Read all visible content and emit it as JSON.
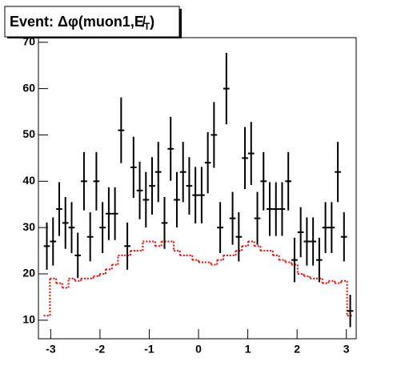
{
  "chart_data": {
    "type": "histogram",
    "title_parts": [
      "Event: Δφ(muon1,E̸",
      "T",
      ")"
    ],
    "bins": [
      -3.142,
      -3.016,
      -2.89,
      -2.765,
      -2.639,
      -2.513,
      -2.388,
      -2.262,
      -2.136,
      -2.011,
      -1.885,
      -1.759,
      -1.634,
      -1.508,
      -1.382,
      -1.257,
      -1.131,
      -1.005,
      -0.88,
      -0.754,
      -0.628,
      -0.503,
      -0.377,
      -0.251,
      -0.126,
      0,
      0.126,
      0.251,
      0.377,
      0.503,
      0.628,
      0.754,
      0.88,
      1.005,
      1.131,
      1.257,
      1.382,
      1.508,
      1.634,
      1.759,
      1.885,
      2.011,
      2.136,
      2.262,
      2.388,
      2.513,
      2.639,
      2.765,
      2.89,
      3.016,
      3.142
    ],
    "data": {
      "color": "#000000",
      "values": [
        26,
        27,
        34,
        31,
        30,
        24,
        40,
        28,
        40,
        30,
        33,
        33,
        51,
        26,
        43,
        38,
        36,
        39,
        42,
        31,
        47,
        36,
        42,
        39,
        37,
        37,
        44,
        50,
        30,
        60,
        32,
        28,
        45,
        46,
        32,
        40,
        34,
        34,
        34,
        40,
        23,
        29,
        27,
        27,
        23,
        30,
        30,
        42,
        28,
        12
      ],
      "errors": [
        5.1,
        5.2,
        5.8,
        5.6,
        5.5,
        4.9,
        6.3,
        5.3,
        6.3,
        5.5,
        5.7,
        5.7,
        7.1,
        5.1,
        6.6,
        6.2,
        6,
        6.2,
        6.5,
        5.6,
        6.9,
        6,
        6.5,
        6.2,
        6.1,
        6.1,
        6.6,
        7.1,
        5.5,
        7.7,
        5.7,
        5.3,
        6.7,
        6.8,
        5.7,
        6.3,
        5.8,
        5.8,
        5.8,
        6.3,
        4.8,
        5.4,
        5.2,
        5.2,
        4.8,
        5.5,
        5.5,
        6.5,
        5.3,
        3.5
      ]
    },
    "expected": {
      "color": "#ff0000",
      "values": [
        11,
        19,
        18,
        17,
        19,
        18.5,
        19,
        19,
        19.5,
        20,
        21,
        22,
        24,
        24,
        25,
        25,
        27,
        27,
        26,
        27,
        27,
        25,
        24,
        24,
        23,
        22.5,
        22.5,
        22,
        23,
        24,
        24,
        25,
        26,
        27,
        26,
        25,
        25,
        24,
        23,
        22.5,
        22,
        20,
        19.5,
        19,
        19,
        18,
        18.5,
        18,
        18.5,
        11
      ]
    },
    "xlim": [
      -3.25,
      3.2
    ],
    "ylim": [
      6,
      71
    ],
    "xticks": [
      -3,
      -2,
      -1,
      0,
      1,
      2,
      3
    ],
    "yticks": [
      10,
      20,
      30,
      40,
      50,
      60,
      70
    ]
  }
}
